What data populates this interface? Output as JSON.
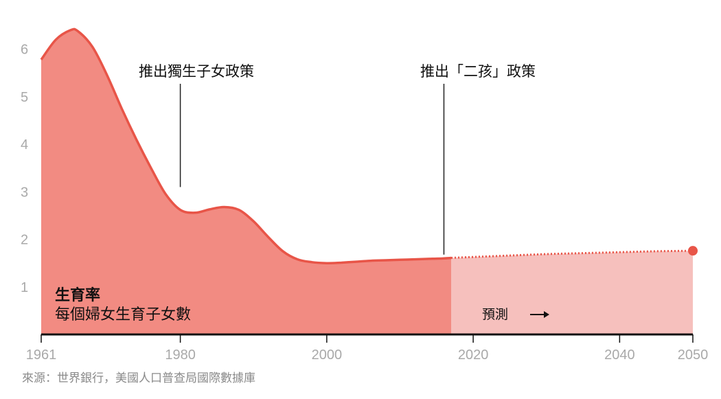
{
  "chart_data": {
    "type": "area",
    "title": "生育率",
    "subtitle": "每個婦女生育子女數",
    "source": "來源：世界銀行，美國人口普查局國際數據庫",
    "x_range": [
      1961,
      2050
    ],
    "y_range": [
      0,
      6.5
    ],
    "x_ticks": [
      1961,
      1980,
      2000,
      2020,
      2040,
      2050
    ],
    "y_ticks": [
      1,
      2,
      3,
      4,
      5,
      6
    ],
    "historical": {
      "x": [
        1961,
        1963,
        1965,
        1966,
        1968,
        1970,
        1972,
        1974,
        1976,
        1978,
        1980,
        1982,
        1984,
        1986,
        1988,
        1990,
        1992,
        1994,
        1996,
        1998,
        2000,
        2002,
        2004,
        2006,
        2008,
        2010,
        2012,
        2014,
        2016,
        2017
      ],
      "y": [
        5.78,
        6.2,
        6.4,
        6.38,
        6.05,
        5.45,
        4.75,
        4.1,
        3.5,
        2.95,
        2.62,
        2.56,
        2.63,
        2.68,
        2.62,
        2.38,
        2.05,
        1.75,
        1.58,
        1.52,
        1.5,
        1.51,
        1.53,
        1.55,
        1.56,
        1.57,
        1.58,
        1.59,
        1.6,
        1.61
      ]
    },
    "forecast": {
      "label": "預測",
      "x": [
        2017,
        2020,
        2025,
        2030,
        2035,
        2040,
        2045,
        2050
      ],
      "y": [
        1.61,
        1.63,
        1.66,
        1.69,
        1.71,
        1.73,
        1.75,
        1.76
      ]
    },
    "annotations": [
      {
        "x": 1980,
        "y": 3.1,
        "label": "推出獨生子女政策"
      },
      {
        "x": 2016,
        "y": 1.68,
        "label": "推出「二孩」政策"
      }
    ],
    "colors": {
      "historical_fill": "#f28b82",
      "forecast_fill": "#f6c0bd",
      "line": "#e85548",
      "axis": "#111111",
      "tick": "#a9a9a9"
    },
    "grid": false,
    "legend": "none"
  }
}
